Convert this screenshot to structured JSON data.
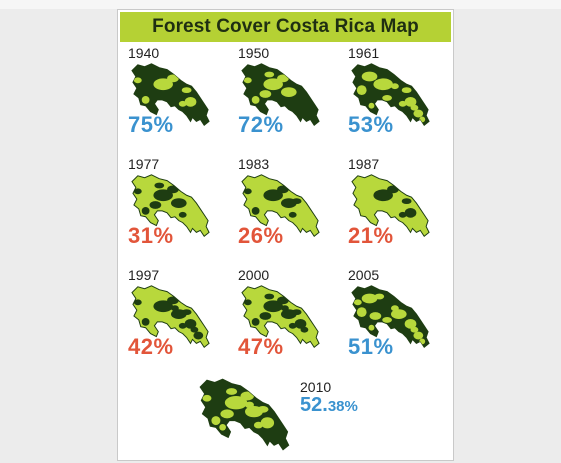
{
  "title": "Forest Cover Costa Rica Map",
  "colors": {
    "title_bg": "#b5d134",
    "land_light": "#b8d83c",
    "forest_dark": "#1e3d12",
    "pct_blue": "#3a92cf",
    "pct_red": "#e2553a"
  },
  "panels": [
    {
      "year": "1940",
      "percent": "75%",
      "color": "blue",
      "forest_fraction": 0.75
    },
    {
      "year": "1950",
      "percent": "72%",
      "color": "blue",
      "forest_fraction": 0.72
    },
    {
      "year": "1961",
      "percent": "53%",
      "color": "blue",
      "forest_fraction": 0.53
    },
    {
      "year": "1977",
      "percent": "31%",
      "color": "red",
      "forest_fraction": 0.31
    },
    {
      "year": "1983",
      "percent": "26%",
      "color": "red",
      "forest_fraction": 0.26
    },
    {
      "year": "1987",
      "percent": "21%",
      "color": "red",
      "forest_fraction": 0.21
    },
    {
      "year": "1997",
      "percent": "42%",
      "color": "red",
      "forest_fraction": 0.42
    },
    {
      "year": "2000",
      "percent": "47%",
      "color": "red",
      "forest_fraction": 0.47
    },
    {
      "year": "2005",
      "percent": "51%",
      "color": "blue",
      "forest_fraction": 0.51
    }
  ],
  "final": {
    "year": "2010",
    "percent_whole": "52.",
    "percent_decimal": "38%",
    "color": "blue",
    "forest_fraction": 0.5238
  }
}
